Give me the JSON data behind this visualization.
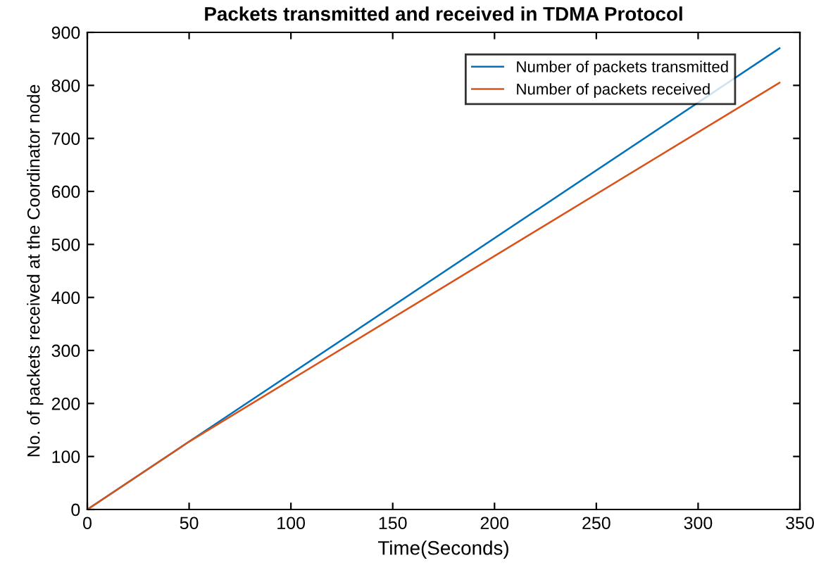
{
  "chart_data": {
    "type": "line",
    "title": "Packets transmitted and received in TDMA Protocol",
    "xlabel": "Time(Seconds)",
    "ylabel": "No. of packets received at the Coordinator node",
    "series": [
      {
        "name": "Number of packets transmitted",
        "color": "#0072bd",
        "x": [
          0,
          50,
          340
        ],
        "values": [
          0,
          128,
          870
        ]
      },
      {
        "name": "Number of packets received",
        "color": "#d95319",
        "x": [
          0,
          50,
          340
        ],
        "values": [
          0,
          128,
          805
        ]
      }
    ],
    "xlim": [
      0,
      350
    ],
    "xticks": [
      0,
      50,
      100,
      150,
      200,
      250,
      300,
      350
    ],
    "ylim": [
      0,
      900
    ],
    "yticks": [
      0,
      100,
      200,
      300,
      400,
      500,
      600,
      700,
      800,
      900
    ],
    "grid": false,
    "legend": "top right",
    "marker": "none",
    "line_style": "solid"
  }
}
